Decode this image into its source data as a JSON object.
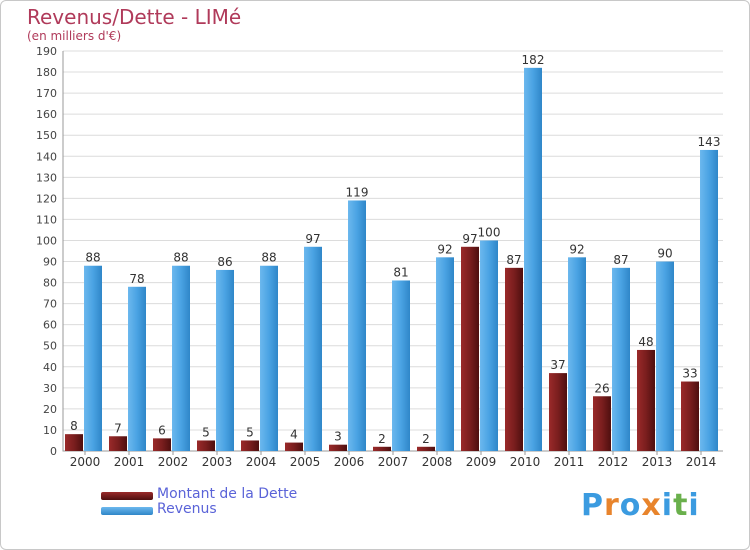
{
  "chart_data": {
    "type": "bar",
    "title": "Revenus/Dette - LIMé",
    "subtitle": "(en milliers d'€)",
    "categories": [
      "2000",
      "2001",
      "2002",
      "2003",
      "2004",
      "2005",
      "2006",
      "2007",
      "2008",
      "2009",
      "2010",
      "2011",
      "2012",
      "2013",
      "2014"
    ],
    "series": [
      {
        "name": "Montant de la Dette",
        "color": "#7a1e1e",
        "values": [
          8,
          7,
          6,
          5,
          5,
          4,
          3,
          2,
          2,
          97,
          87,
          37,
          26,
          48,
          33
        ]
      },
      {
        "name": "Revenus",
        "color": "#4aa3e3",
        "values": [
          88,
          78,
          88,
          86,
          88,
          97,
          119,
          81,
          92,
          100,
          182,
          92,
          87,
          90,
          143
        ]
      }
    ],
    "ylim": [
      0,
      190
    ],
    "yticks": [
      0,
      10,
      20,
      30,
      40,
      50,
      60,
      70,
      80,
      90,
      100,
      110,
      120,
      130,
      140,
      150,
      160,
      170,
      180,
      190
    ],
    "grid": true,
    "legend_position": "bottom-left"
  },
  "legend": {
    "debt_label": "Montant de la Dette",
    "revenue_label": "Revenus"
  },
  "logo": {
    "text": "Proxiti",
    "letters": [
      "P",
      "r",
      "o",
      "x",
      "i",
      "t",
      "i"
    ],
    "colors": [
      "#3b9be0",
      "#e8842c",
      "#3b9be0",
      "#e8842c",
      "#3b9be0",
      "#6ab04c",
      "#3b9be0"
    ]
  }
}
